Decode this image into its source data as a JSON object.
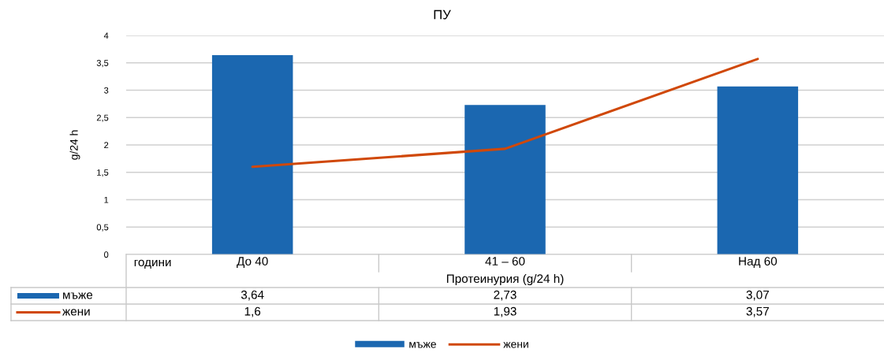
{
  "chart_data": {
    "type": "bar",
    "title": "ПУ",
    "xlabel": "Протеинурия (g/24 h)",
    "ylabel": "g/24 h",
    "categories": [
      "До 40",
      "41 – 60",
      "Над 60"
    ],
    "annotations": [
      "години"
    ],
    "series": [
      {
        "name": "мъже",
        "color": "#1b67b0",
        "values": [
          3.64,
          2.73,
          3.07
        ],
        "value_labels": [
          "3,64",
          "2,73",
          "3,07"
        ]
      },
      {
        "name": "жени",
        "type": "line",
        "color": "#d04808",
        "values": [
          1.6,
          1.93,
          3.57
        ],
        "value_labels": [
          "1,6",
          "1,93",
          "3,57"
        ]
      }
    ],
    "ylim": [
      0,
      4
    ],
    "yticks": [
      0,
      {
        "value": 0.5,
        "label": "0,5"
      },
      1,
      {
        "value": 1.5,
        "label": "1,5"
      },
      2,
      {
        "value": 2.5,
        "label": "2,5"
      },
      3,
      {
        "value": 3.5,
        "label": "3,5"
      },
      4
    ],
    "grid": "y",
    "legend": "bottom",
    "line_style": "solid"
  }
}
